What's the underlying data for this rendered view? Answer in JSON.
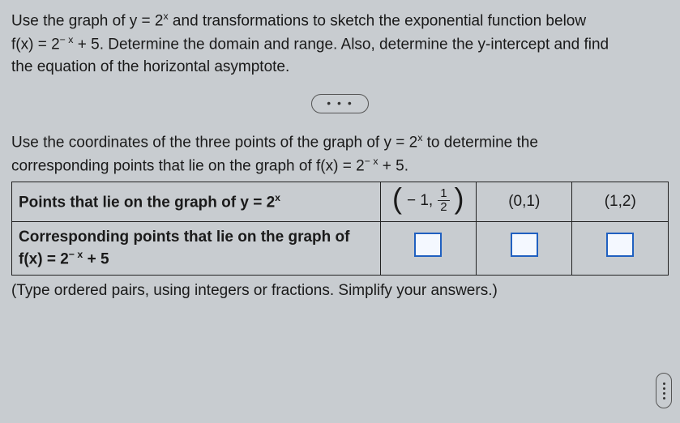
{
  "intro": {
    "line1_a": "Use the graph of y = 2",
    "line1_exp": "x",
    "line1_b": " and transformations to sketch the exponential function below",
    "line2_a": "f(x) = 2",
    "line2_exp": "− x",
    "line2_b": " + 5. Determine the domain and range. Also, determine the y-intercept and find",
    "line3": "the equation of the horizontal asymptote."
  },
  "dots": "• • •",
  "section2": {
    "line1_a": "Use the coordinates of the three points of the graph of y = 2",
    "line1_exp": "x",
    "line1_b": " to determine the",
    "line2_a": "corresponding points that lie on the graph of f(x) = 2",
    "line2_exp": "− x",
    "line2_b": " + 5."
  },
  "table": {
    "row1_label_a": "Points that lie on the graph of y = 2",
    "row1_label_exp": "x",
    "row1_cell1_prefix": "− 1,",
    "row1_cell1_num": "1",
    "row1_cell1_den": "2",
    "row1_cell2": "(0,1)",
    "row1_cell3": "(1,2)",
    "row2_label_a": "Corresponding points that lie on the graph of",
    "row2_label_b": "f(x) = 2",
    "row2_label_exp": "− x",
    "row2_label_c": " + 5"
  },
  "footnote": "(Type ordered pairs, using integers or fractions. Simplify your answers.)",
  "colors": {
    "input_border": "#2060c0",
    "page_bg": "#c8ccd0",
    "text": "#1a1a1a",
    "border": "#222222"
  }
}
